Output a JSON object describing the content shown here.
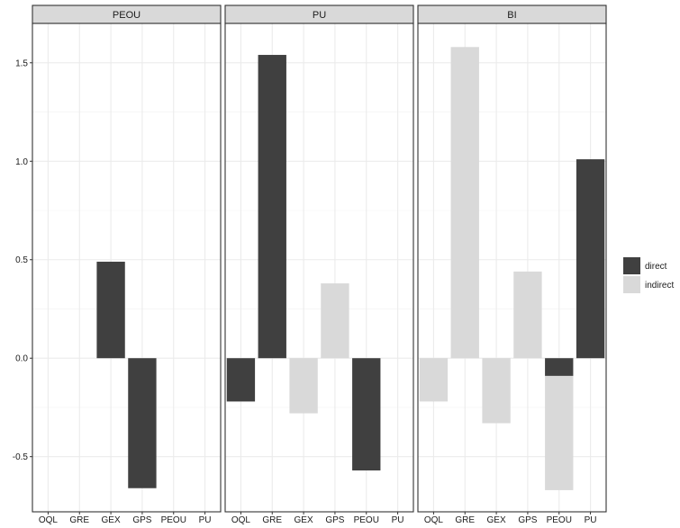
{
  "chart_data": {
    "type": "bar",
    "stacked": true,
    "facets": [
      "PEOU",
      "PU",
      "BI"
    ],
    "categories": [
      "OQL",
      "GRE",
      "GEX",
      "GPS",
      "PEOU",
      "PU"
    ],
    "ylim": [
      -0.78,
      1.7
    ],
    "yticks": [
      -0.5,
      0.0,
      0.5,
      1.0,
      1.5
    ],
    "ytick_labels": [
      "-0.5",
      "0.0",
      "0.5",
      "1.0",
      "1.5"
    ],
    "grid": true,
    "legend_position": "right",
    "series": [
      {
        "name": "direct",
        "color": "#404040",
        "values": {
          "PEOU": [
            0,
            0,
            0.49,
            -0.66,
            0,
            0
          ],
          "PU": [
            -0.22,
            1.54,
            0,
            0,
            -0.57,
            0
          ],
          "BI": [
            0,
            0,
            0,
            0,
            -0.09,
            1.01
          ]
        }
      },
      {
        "name": "indirect",
        "color": "#d9d9d9",
        "values": {
          "PEOU": [
            0,
            0,
            0,
            0,
            0,
            0
          ],
          "PU": [
            0,
            0,
            -0.28,
            0.38,
            0,
            0
          ],
          "BI": [
            -0.22,
            1.58,
            -0.33,
            0.44,
            -0.58,
            0
          ]
        }
      }
    ]
  }
}
